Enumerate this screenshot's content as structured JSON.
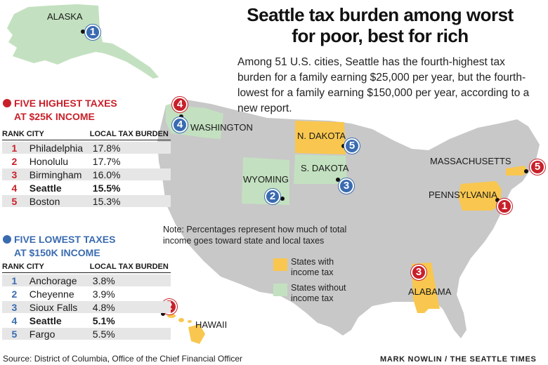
{
  "title": {
    "line1": "Seattle tax burden among worst",
    "line2": "for poor, best for rich"
  },
  "intro": "Among 51 U.S. cities, Seattle has the fourth-highest tax burden for a family earning $25,000 per year, but the fourth-lowest for a family earning $150,000 per year, according to a new report.",
  "colors": {
    "income_tax": "#f9c74f",
    "no_income_tax": "#c3e1c0",
    "land": "#c8c8c8",
    "highest_marker": "#c8202a",
    "lowest_marker": "#3a6bb0"
  },
  "state_labels": {
    "alaska": "ALASKA",
    "washington": "WASHINGTON",
    "n_dakota": "N. DAKOTA",
    "s_dakota": "S. DAKOTA",
    "wyoming": "WYOMING",
    "massachusetts": "MASSACHUSETTS",
    "pennsylvania": "PENNSYLVANIA",
    "alabama": "ALABAMA",
    "hawaii": "HAWAII"
  },
  "markers": {
    "anchorage": "1",
    "seattle_high": "4",
    "seattle_low": "4",
    "fargo": "5",
    "sioux_falls": "3",
    "cheyenne": "2",
    "boston": "5",
    "philadelphia": "1",
    "birmingham": "3",
    "honolulu": "2"
  },
  "highest": {
    "heading_line1": "FIVE HIGHEST TAXES",
    "heading_line2": "AT $25K INCOME",
    "columns": [
      "RANK",
      "CITY",
      "LOCAL TAX BURDEN"
    ],
    "rows": [
      {
        "rank": "1",
        "city": "Philadelphia",
        "value": "17.8%"
      },
      {
        "rank": "2",
        "city": "Honolulu",
        "value": "17.7%"
      },
      {
        "rank": "3",
        "city": "Birmingham",
        "value": "16.0%"
      },
      {
        "rank": "4",
        "city": "Seattle",
        "value": "15.5%"
      },
      {
        "rank": "5",
        "city": "Boston",
        "value": "15.3%"
      }
    ]
  },
  "lowest": {
    "heading_line1": "FIVE LOWEST TAXES",
    "heading_line2": "AT $150K INCOME",
    "columns": [
      "RANK",
      "CITY",
      "LOCAL TAX BURDEN"
    ],
    "rows": [
      {
        "rank": "1",
        "city": "Anchorage",
        "value": "3.8%"
      },
      {
        "rank": "2",
        "city": "Cheyenne",
        "value": "3.9%"
      },
      {
        "rank": "3",
        "city": "Sioux Falls",
        "value": "4.8%"
      },
      {
        "rank": "4",
        "city": "Seattle",
        "value": "5.1%"
      },
      {
        "rank": "5",
        "city": "Fargo",
        "value": "5.5%"
      }
    ]
  },
  "note": "Note: Percentages represent how much of total income goes toward state and local taxes",
  "legend": {
    "with_tax": "States with income tax",
    "without_tax": "States without income tax"
  },
  "source": "Source: District of Columbia, Office of the Chief Financial Officer",
  "credit": "MARK NOWLIN / THE SEATTLE TIMES"
}
